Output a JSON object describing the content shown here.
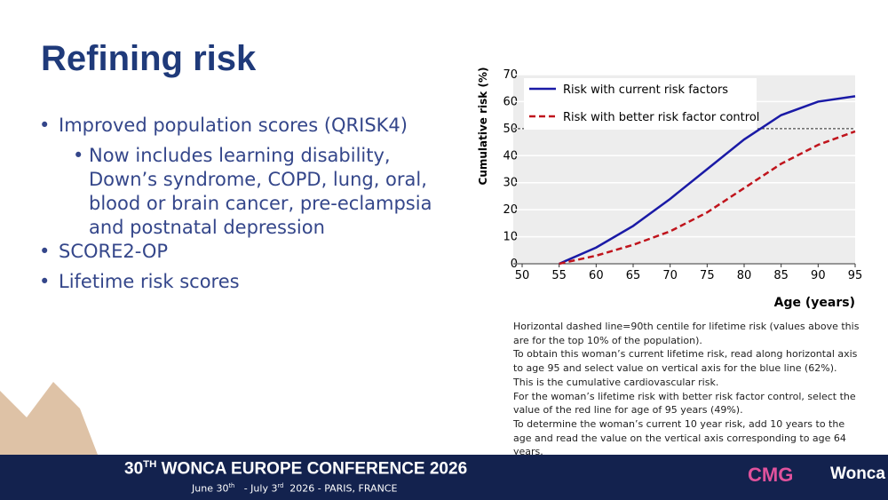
{
  "title": "Refining risk",
  "bullets": [
    {
      "text": "Improved population scores (QRISK4)",
      "sub": [
        "Now includes learning disability, Down’s syndrome, COPD, lung, oral, blood or brain cancer, pre-eclampsia and postnatal depression"
      ]
    },
    {
      "text": "SCORE2-OP",
      "sub": []
    },
    {
      "text": "Lifetime risk scores",
      "sub": []
    }
  ],
  "chart_data": {
    "type": "line",
    "x": [
      55,
      60,
      65,
      70,
      75,
      80,
      85,
      90,
      95
    ],
    "series": [
      {
        "name": "Risk with current risk factors",
        "color": "#1a1aa6",
        "dash": false,
        "values": [
          0,
          6,
          14,
          24,
          35,
          46,
          55,
          60,
          62
        ]
      },
      {
        "name": "Risk with better risk factor control",
        "color": "#c0141c",
        "dash": true,
        "values": [
          0,
          3,
          7,
          12,
          19,
          28,
          37,
          44,
          49
        ]
      }
    ],
    "xlim": [
      50,
      95
    ],
    "xticks": [
      50,
      55,
      60,
      65,
      70,
      75,
      80,
      85,
      90,
      95
    ],
    "ylim": [
      0,
      70
    ],
    "yticks": [
      0,
      10,
      20,
      30,
      40,
      50,
      60,
      70
    ],
    "reference_line": 50,
    "x_label": "Age (years)",
    "y_label": "Cumulative risk (%)",
    "grid": true,
    "legend": "top-left",
    "caption": [
      "Horizontal dashed line=90th centile for lifetime risk (values above this are for the top 10% of the population).",
      "To obtain this woman’s current lifetime risk, read along horizontal axis to age 95 and select value on vertical axis for the blue line (62%). This is the cumulative cardiovascular risk.",
      "For the woman’s lifetime risk with better risk factor control, select the value of the red line for age of 95 years (49%).",
      "To determine the woman’s current 10 year risk, add 10 years to the age and read the value on the vertical axis corresponding to age 64 years."
    ]
  },
  "footer": {
    "number": "30",
    "number_sup": "TH",
    "title": "WONCA EUROPE CONFERENCE 2026",
    "date_1": "June 30",
    "date_1_sup": "th",
    "date_2": "- July 3",
    "date_2_sup": "rd",
    "date_3": "2026 - PARIS, FRANCE",
    "logo_1": "CMG",
    "logo_2": "Wonca"
  }
}
